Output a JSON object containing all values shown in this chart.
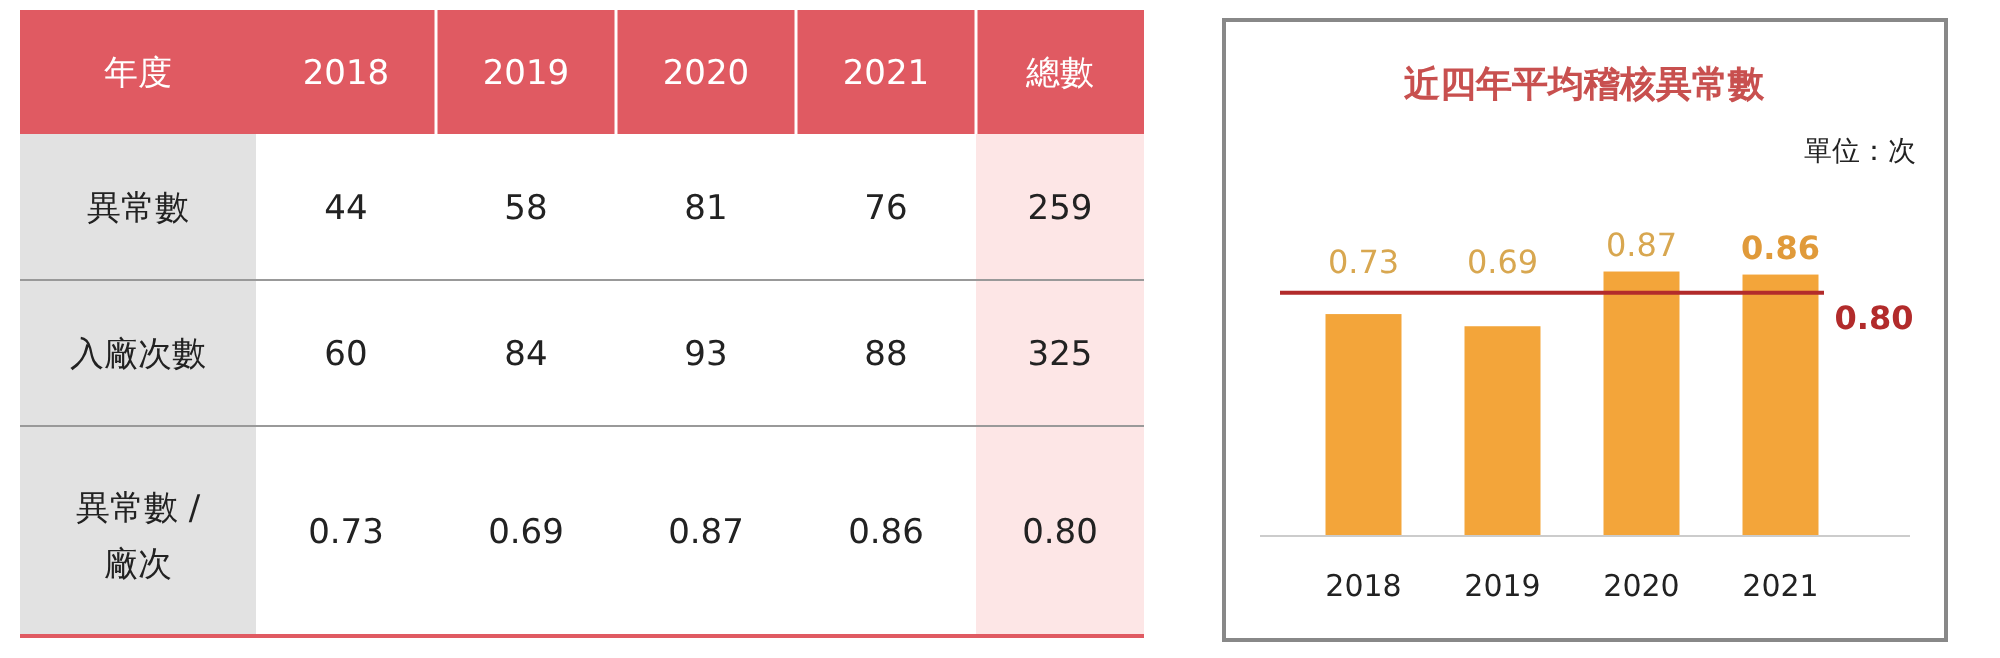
{
  "chart_data": [
    {
      "type": "heatmap",
      "xlabel": "年度",
      "categories": [
        "2018",
        "2019",
        "2020",
        "2021",
        "總數"
      ],
      "y_categories": [
        "異常數",
        "入廠次數",
        "異常數 / 廠次"
      ],
      "cells": [
        [
          44,
          58,
          81,
          76,
          259
        ],
        [
          60,
          84,
          93,
          88,
          325
        ],
        [
          0.73,
          0.69,
          0.87,
          0.86,
          0.8
        ]
      ],
      "cell_labels": [
        [
          "44",
          "58",
          "81",
          "76",
          "259"
        ],
        [
          "60",
          "84",
          "93",
          "88",
          "325"
        ],
        [
          "0.73",
          "0.69",
          "0.87",
          "0.86",
          "0.80"
        ]
      ]
    },
    {
      "type": "bar",
      "title": "近四年平均稽核異常數",
      "annotations": [
        "單位：次"
      ],
      "categories": [
        "2018",
        "2019",
        "2020",
        "2021"
      ],
      "values": [
        0.73,
        0.69,
        0.87,
        0.86
      ],
      "color": "#f3a53a",
      "data_labels": true,
      "ref_lines": [
        {
          "axis": "y",
          "value": 0.8,
          "label": "0.80",
          "color": "#b22b2b"
        }
      ]
    }
  ]
}
